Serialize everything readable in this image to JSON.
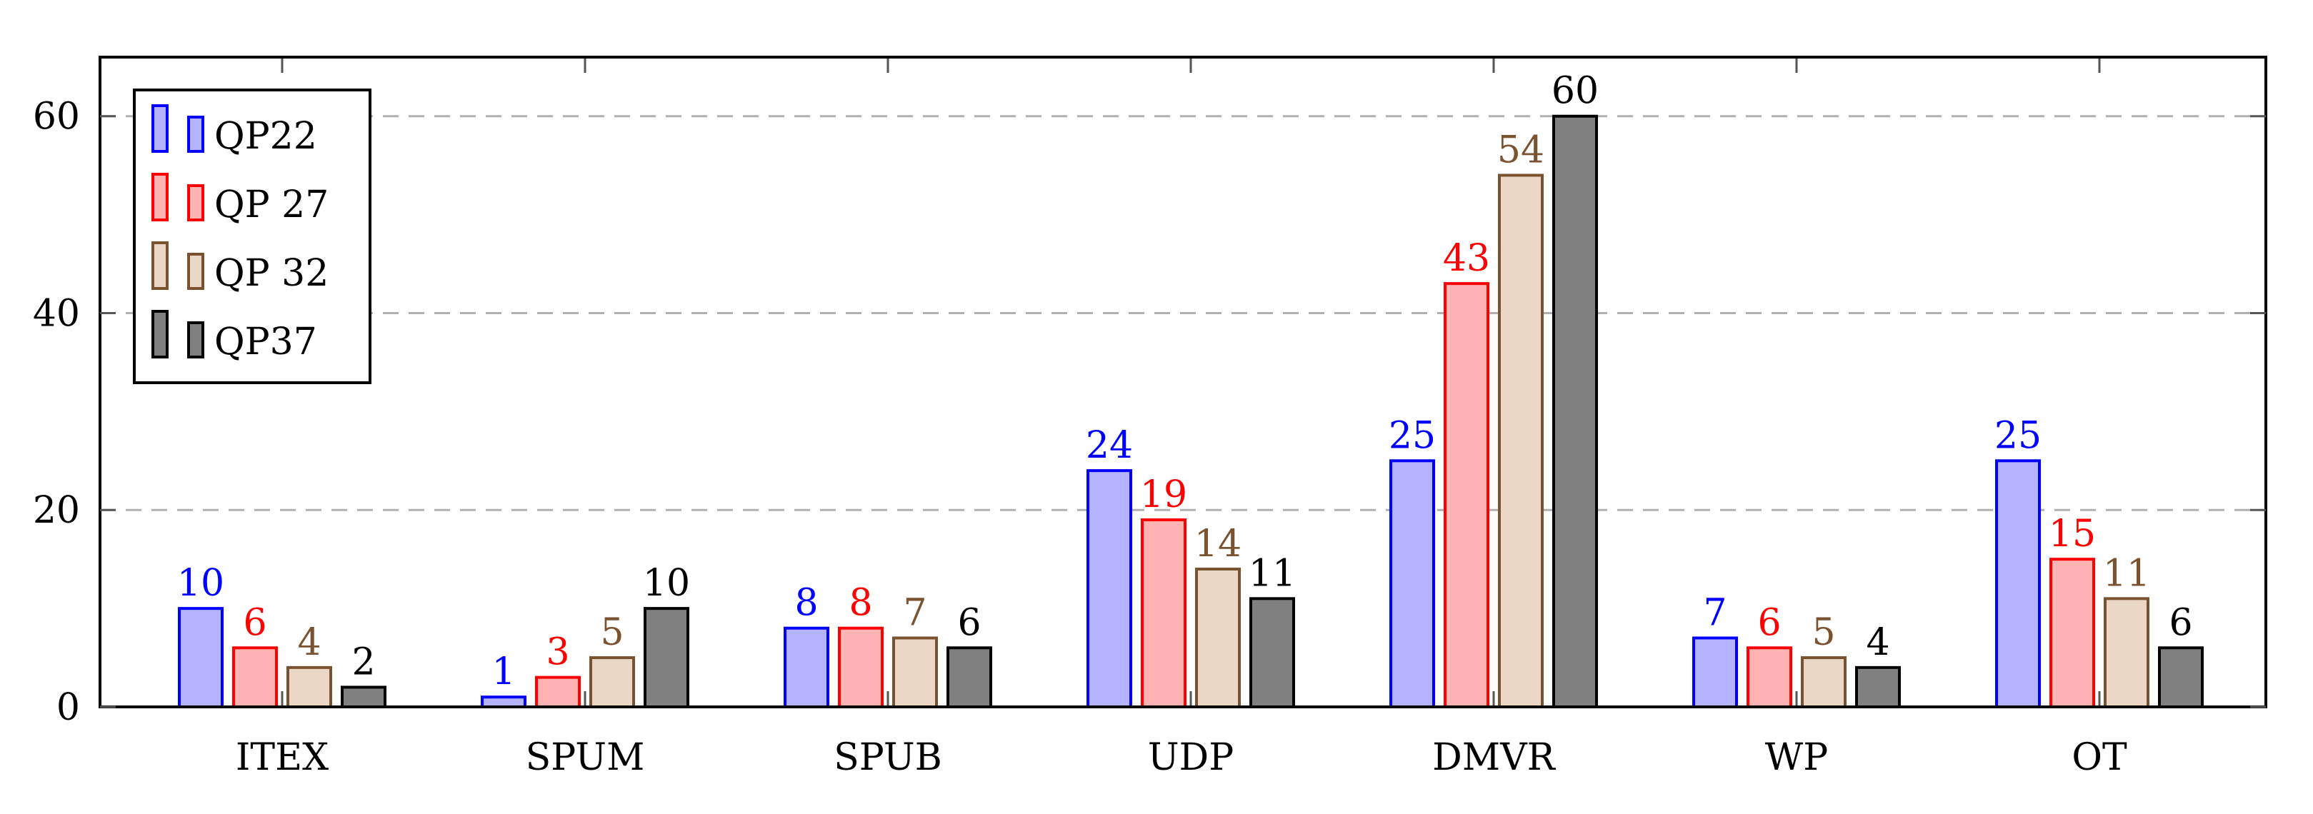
{
  "chart_data": {
    "type": "bar",
    "title": "",
    "xlabel": "",
    "ylabel": "",
    "categories": [
      "ITEX",
      "SPUM",
      "SPUB",
      "UDP",
      "DMVR",
      "WP",
      "OT"
    ],
    "series": [
      {
        "name": "QP22",
        "values": [
          10,
          1,
          8,
          24,
          25,
          7,
          25
        ],
        "fill": "#b3b3ff",
        "stroke": "#0000ff",
        "label_color": "#0000ff"
      },
      {
        "name": "QP 27",
        "values": [
          6,
          3,
          8,
          19,
          43,
          6,
          15
        ],
        "fill": "#ffb3b3",
        "stroke": "#ff0000",
        "label_color": "#ff0000"
      },
      {
        "name": "QP 32",
        "values": [
          4,
          5,
          7,
          14,
          54,
          5,
          11
        ],
        "fill": "#ead7c5",
        "stroke": "#7a5230",
        "label_color": "#7a5230"
      },
      {
        "name": "QP37",
        "values": [
          2,
          10,
          6,
          11,
          60,
          4,
          6
        ],
        "fill": "#808080",
        "stroke": "#000000",
        "label_color": "#000000"
      }
    ],
    "yticks": [
      "0",
      "20",
      "40",
      "60"
    ],
    "ytick_values": [
      0,
      20,
      40,
      60
    ],
    "ylim": [
      0,
      66
    ],
    "grid": "horizontal dashed at major y ticks",
    "legend_position": "top-left",
    "data_labels": true
  }
}
